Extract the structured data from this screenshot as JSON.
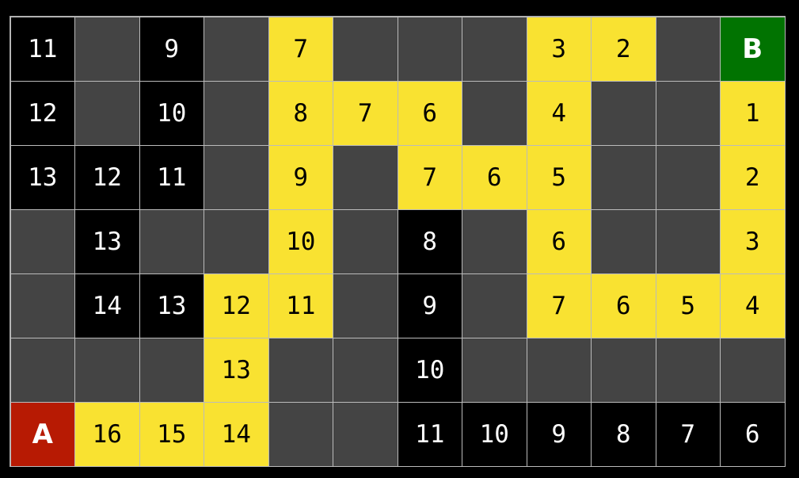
{
  "legend_colors": {
    "wall": "#444444",
    "path": "#f9e231",
    "explored": "#000000",
    "start": "#b71a03",
    "goal": "#017301"
  },
  "grid": [
    [
      [
        "11",
        "explored"
      ],
      [
        "",
        "wall"
      ],
      [
        "9",
        "explored"
      ],
      [
        "",
        "wall"
      ],
      [
        "7",
        "path"
      ],
      [
        "",
        "wall"
      ],
      [
        "",
        "wall"
      ],
      [
        "",
        "wall"
      ],
      [
        "3",
        "path"
      ],
      [
        "2",
        "path"
      ],
      [
        "",
        "wall"
      ],
      [
        "B",
        "goal"
      ]
    ],
    [
      [
        "12",
        "explored"
      ],
      [
        "",
        "wall"
      ],
      [
        "10",
        "explored"
      ],
      [
        "",
        "wall"
      ],
      [
        "8",
        "path"
      ],
      [
        "7",
        "path"
      ],
      [
        "6",
        "path"
      ],
      [
        "",
        "wall"
      ],
      [
        "4",
        "path"
      ],
      [
        "",
        "wall"
      ],
      [
        "",
        "wall"
      ],
      [
        "1",
        "path"
      ]
    ],
    [
      [
        "13",
        "explored"
      ],
      [
        "12",
        "explored"
      ],
      [
        "11",
        "explored"
      ],
      [
        "",
        "wall"
      ],
      [
        "9",
        "path"
      ],
      [
        "",
        "wall"
      ],
      [
        "7",
        "path"
      ],
      [
        "6",
        "path"
      ],
      [
        "5",
        "path"
      ],
      [
        "",
        "wall"
      ],
      [
        "",
        "wall"
      ],
      [
        "2",
        "path"
      ]
    ],
    [
      [
        "",
        "wall"
      ],
      [
        "13",
        "explored"
      ],
      [
        "",
        "wall"
      ],
      [
        "",
        "wall"
      ],
      [
        "10",
        "path"
      ],
      [
        "",
        "wall"
      ],
      [
        "8",
        "explored"
      ],
      [
        "",
        "wall"
      ],
      [
        "6",
        "path"
      ],
      [
        "",
        "wall"
      ],
      [
        "",
        "wall"
      ],
      [
        "3",
        "path"
      ]
    ],
    [
      [
        "",
        "wall"
      ],
      [
        "14",
        "explored"
      ],
      [
        "13",
        "explored"
      ],
      [
        "12",
        "path"
      ],
      [
        "11",
        "path"
      ],
      [
        "",
        "wall"
      ],
      [
        "9",
        "explored"
      ],
      [
        "",
        "wall"
      ],
      [
        "7",
        "path"
      ],
      [
        "6",
        "path"
      ],
      [
        "5",
        "path"
      ],
      [
        "4",
        "path"
      ]
    ],
    [
      [
        "",
        "wall"
      ],
      [
        "",
        "wall"
      ],
      [
        "",
        "wall"
      ],
      [
        "13",
        "path"
      ],
      [
        "",
        "wall"
      ],
      [
        "",
        "wall"
      ],
      [
        "10",
        "explored"
      ],
      [
        "",
        "wall"
      ],
      [
        "",
        "wall"
      ],
      [
        "",
        "wall"
      ],
      [
        "",
        "wall"
      ],
      [
        "",
        "wall"
      ]
    ],
    [
      [
        "A",
        "start"
      ],
      [
        "16",
        "path"
      ],
      [
        "15",
        "path"
      ],
      [
        "14",
        "path"
      ],
      [
        "",
        "wall"
      ],
      [
        "",
        "wall"
      ],
      [
        "11",
        "explored"
      ],
      [
        "10",
        "explored"
      ],
      [
        "9",
        "explored"
      ],
      [
        "8",
        "explored"
      ],
      [
        "7",
        "explored"
      ],
      [
        "6",
        "explored"
      ]
    ]
  ]
}
